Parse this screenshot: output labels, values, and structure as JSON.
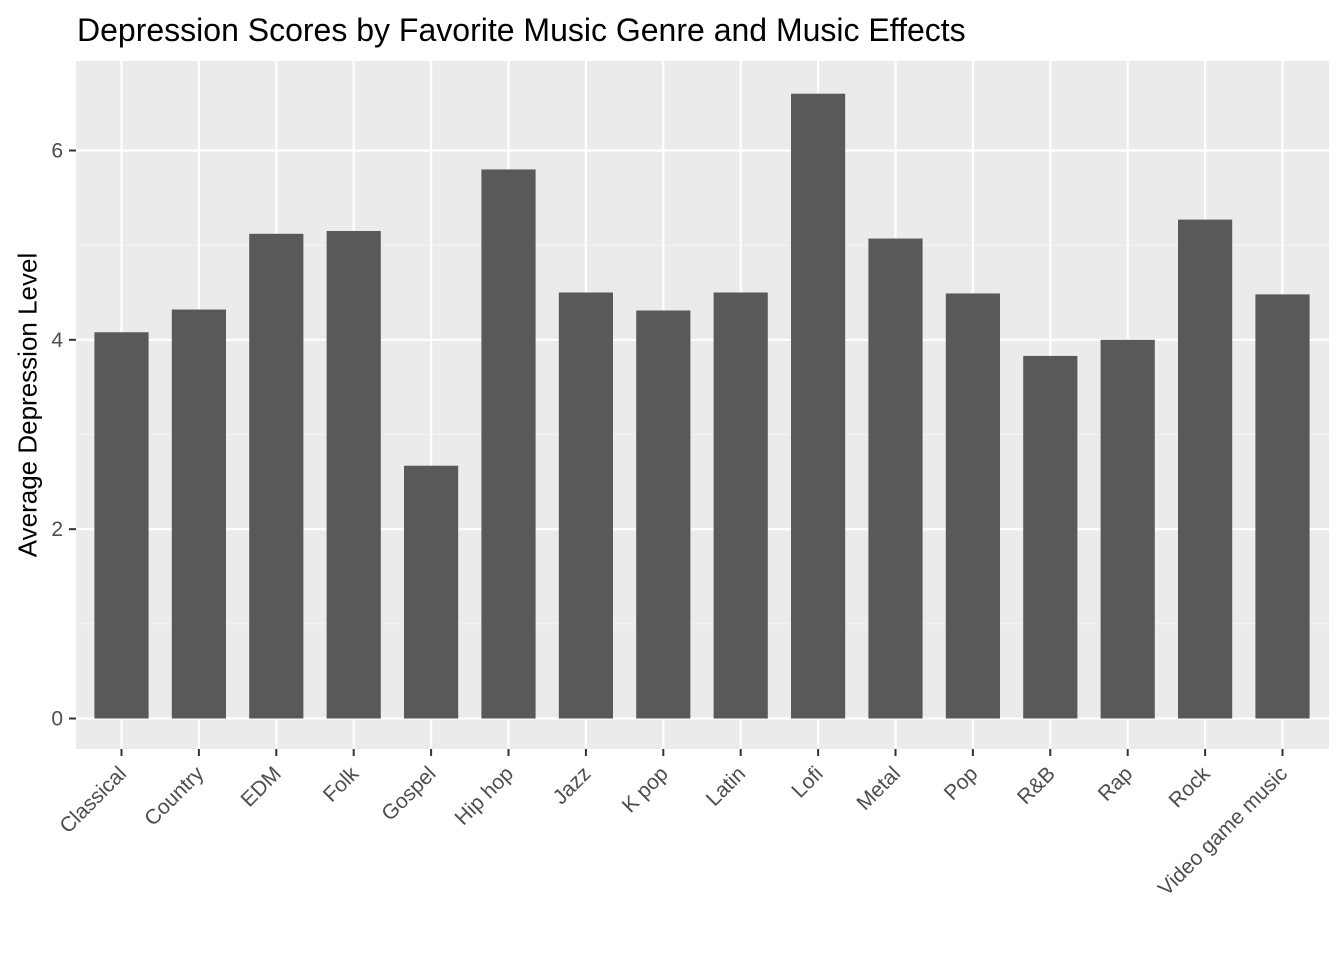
{
  "chart_data": {
    "type": "bar",
    "title": "Depression Scores by Favorite Music Genre and Music Effects",
    "xlabel": "",
    "ylabel": "Average Depression Level",
    "categories": [
      "Classical",
      "Country",
      "EDM",
      "Folk",
      "Gospel",
      "Hip hop",
      "Jazz",
      "K pop",
      "Latin",
      "Lofi",
      "Metal",
      "Pop",
      "R&B",
      "Rap",
      "Rock",
      "Video game music"
    ],
    "values": [
      4.08,
      4.32,
      5.12,
      5.15,
      2.67,
      5.8,
      4.5,
      4.31,
      4.5,
      6.6,
      5.07,
      4.49,
      3.83,
      4.0,
      5.27,
      4.48
    ],
    "yticks": [
      0,
      2,
      4,
      6
    ],
    "ylim": [
      -0.33,
      6.93
    ],
    "grid": true,
    "legend": "none",
    "colors": {
      "bar": "#595959",
      "panel": "#ebebeb",
      "grid_major": "#ffffff",
      "grid_minor": "#f5f5f5",
      "tick_text": "#4d4d4d",
      "tick_mark": "#333333"
    }
  }
}
